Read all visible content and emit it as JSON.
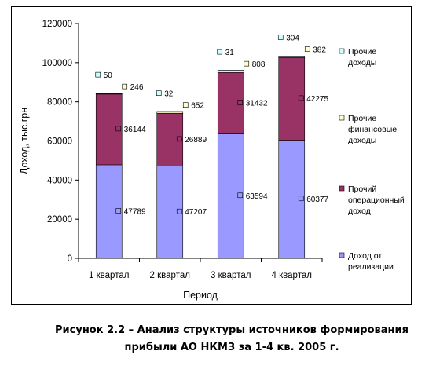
{
  "chart_data": {
    "type": "bar",
    "stacked": true,
    "title": "",
    "xlabel": "Период",
    "ylabel": "Доход, тыс.грн",
    "ylim": [
      0,
      120000
    ],
    "yticks": [
      "0",
      "20000",
      "40000",
      "60000",
      "80000",
      "100000",
      "120000"
    ],
    "categories": [
      "1 квартал",
      "2 квартал",
      "3 квартал",
      "4 квартал"
    ],
    "series": [
      {
        "name": "Доход от реализации",
        "color": "#9999ff",
        "values": [
          47789,
          47207,
          63594,
          60377
        ]
      },
      {
        "name": "Прочий операционный доход",
        "color": "#993366",
        "values": [
          36144,
          26889,
          31432,
          42275
        ]
      },
      {
        "name": "Прочие финансовые доходы",
        "color": "#ffffcc",
        "values": [
          246,
          652,
          808,
          382
        ]
      },
      {
        "name": "Прочие доходы",
        "color": "#ccffff",
        "values": [
          50,
          32,
          31,
          304
        ]
      }
    ],
    "legend_position": "right",
    "grid": false
  },
  "legend": [
    {
      "lines": [
        "Прочие",
        "доходы"
      ]
    },
    {
      "lines": [
        "Прочие",
        "финансовые",
        "доходы"
      ]
    },
    {
      "lines": [
        "Прочий",
        "операционный",
        "доход"
      ]
    },
    {
      "lines": [
        "Доход от",
        "реализации"
      ]
    }
  ],
  "caption": {
    "line1": "Рисунок 2.2 – Анализ структуры  источников формирования",
    "line2": "прибыли АО НКМЗ за 1-4 кв. 2005 г."
  }
}
